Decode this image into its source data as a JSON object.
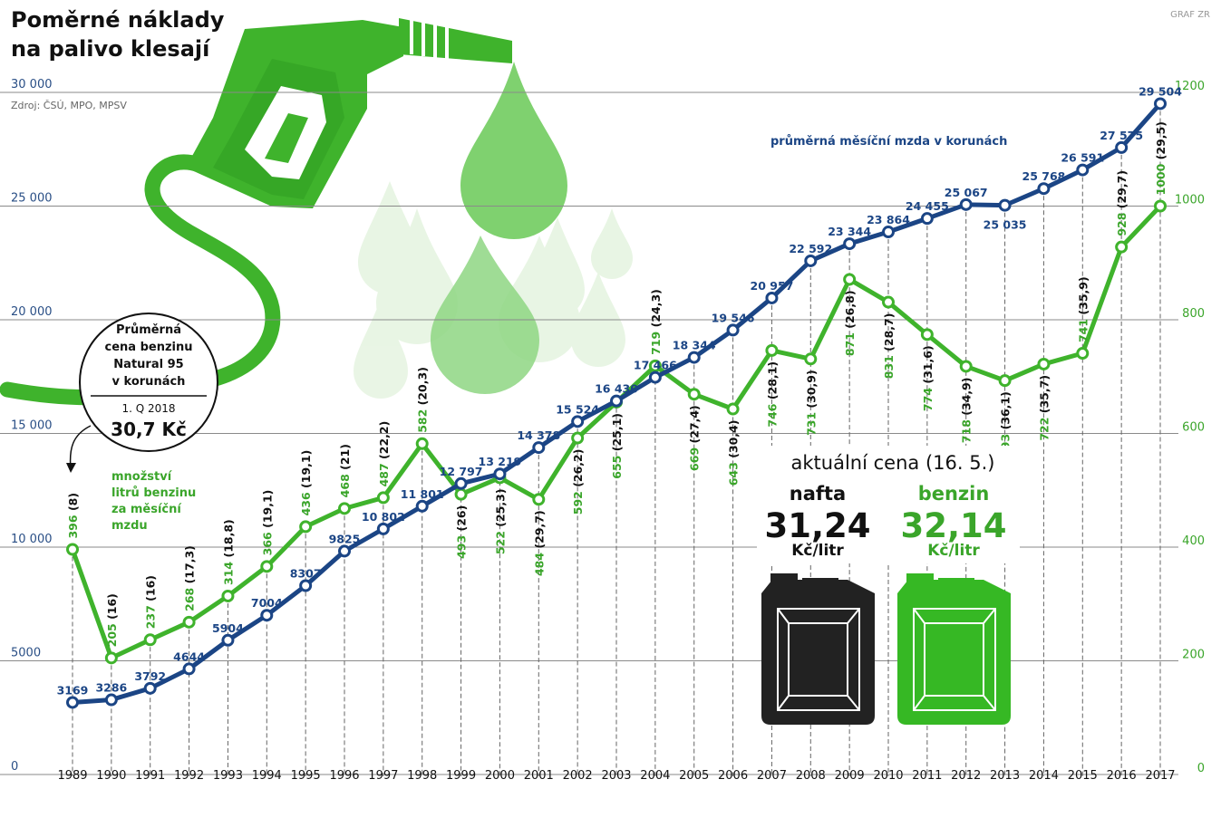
{
  "header": {
    "title_line1": "Poměrné náklady",
    "title_line2": "na palivo klesají",
    "source": "Zdroj: ČSÚ, MPO, MPSV",
    "credit": "GRAF ZR"
  },
  "colors": {
    "wage": "#1b4585",
    "fuel": "#3fb32c",
    "fuel_text": "#3aa52a",
    "grid": "#8a8a8a",
    "jerrycan_dark": "#222222",
    "jerrycan_green": "#36b824"
  },
  "chart_data": {
    "type": "line",
    "title": "Poměrné náklady na palivo klesají",
    "x": [
      "1989",
      "1990",
      "1991",
      "1992",
      "1993",
      "1994",
      "1995",
      "1996",
      "1997",
      "1998",
      "1999",
      "2000",
      "2001",
      "2002",
      "2003",
      "2004",
      "2005",
      "2006",
      "2007",
      "2008",
      "2009",
      "2010",
      "2011",
      "2012",
      "2013",
      "2014",
      "2015",
      "2016",
      "2017"
    ],
    "axes": {
      "left": {
        "ylim": [
          0,
          30000
        ],
        "ticks": [
          0,
          5000,
          10000,
          15000,
          20000,
          25000,
          30000
        ],
        "tick_labels": [
          "0",
          "5000",
          "10 000",
          "15 000",
          "20 000",
          "25 000",
          "30 000"
        ]
      },
      "right": {
        "ylim": [
          0,
          1200
        ],
        "ticks": [
          0,
          200,
          400,
          600,
          800,
          1000,
          1200
        ],
        "tick_labels": [
          "0",
          "200",
          "400",
          "600",
          "800",
          "1000",
          "1200"
        ]
      }
    },
    "grid": true,
    "series": [
      {
        "name": "průměrná měsíční mzda v korunách",
        "axis": "left",
        "values": [
          3169,
          3286,
          3792,
          4644,
          5904,
          7004,
          8307,
          9825,
          10802,
          11801,
          12797,
          13219,
          14378,
          15524,
          16430,
          17466,
          18344,
          19546,
          20957,
          22592,
          23344,
          23864,
          24455,
          25067,
          25035,
          25768,
          26591,
          27575,
          29504
        ],
        "labels": [
          "3169",
          "3286",
          "3792",
          "4644",
          "5904",
          "7004",
          "8307",
          "9825",
          "10 802",
          "11 801",
          "12 797",
          "13 219",
          "14 378",
          "15 524",
          "16 430",
          "17 466",
          "18 344",
          "19 546",
          "20 957",
          "22 592",
          "23 344",
          "23 864",
          "24 455",
          "25 067",
          "25 035",
          "25 768",
          "26 591",
          "27 575",
          "29 504"
        ]
      },
      {
        "name": "množství litrů benzinu za měsíční mzdu",
        "axis": "right",
        "values": [
          396,
          205,
          237,
          268,
          314,
          366,
          436,
          468,
          487,
          582,
          493,
          522,
          484,
          592,
          655,
          719,
          669,
          643,
          746,
          731,
          871,
          831,
          774,
          718,
          693,
          722,
          741,
          928,
          1000
        ],
        "labels": [
          "396",
          "205",
          "237",
          "268",
          "314",
          "366",
          "436",
          "468",
          "487",
          "582",
          "493",
          "522",
          "484",
          "592",
          "655",
          "719",
          "669",
          "643",
          "746",
          "731",
          "871",
          "831",
          "774",
          "718",
          "693",
          "722",
          "741",
          "928",
          "1000"
        ],
        "price_labels": [
          "(8)",
          "(16)",
          "(16)",
          "(17,3)",
          "(18,8)",
          "(19,1)",
          "(19,1)",
          "(21)",
          "(22,2)",
          "(20,3)",
          "(26)",
          "(25,3)",
          "(29,7)",
          "(26,2)",
          "(25,1)",
          "(24,3)",
          "(27,4)",
          "(30,4)",
          "(28,1)",
          "(30,9)",
          "(26,8)",
          "(28,7)",
          "(31,6)",
          "(34,9)",
          "(36,1)",
          "(35,7)",
          "(35,9)",
          "(29,7)",
          "(29,5)"
        ]
      }
    ],
    "annotations": {
      "wage_series_label": "průměrná měsíční mzda v korunách",
      "fuel_series_label": [
        "množství",
        "litrů benzinu",
        "za měsíční",
        "mzdu"
      ]
    }
  },
  "callout": {
    "lines": [
      "Průměrná",
      "cena benzinu",
      "Natural 95",
      "v korunách"
    ],
    "period": "1. Q 2018",
    "price": "30,7 Kč"
  },
  "current_price": {
    "title": "aktuální cena (16. 5.)",
    "diesel_name": "nafta",
    "diesel_price": "31,24",
    "diesel_unit": "Kč/litr",
    "petrol_name": "benzin",
    "petrol_price": "32,14",
    "petrol_unit": "Kč/litr"
  },
  "icons": [
    "fuel-nozzle-icon",
    "fuel-drop-icon",
    "jerrycan-icon"
  ]
}
